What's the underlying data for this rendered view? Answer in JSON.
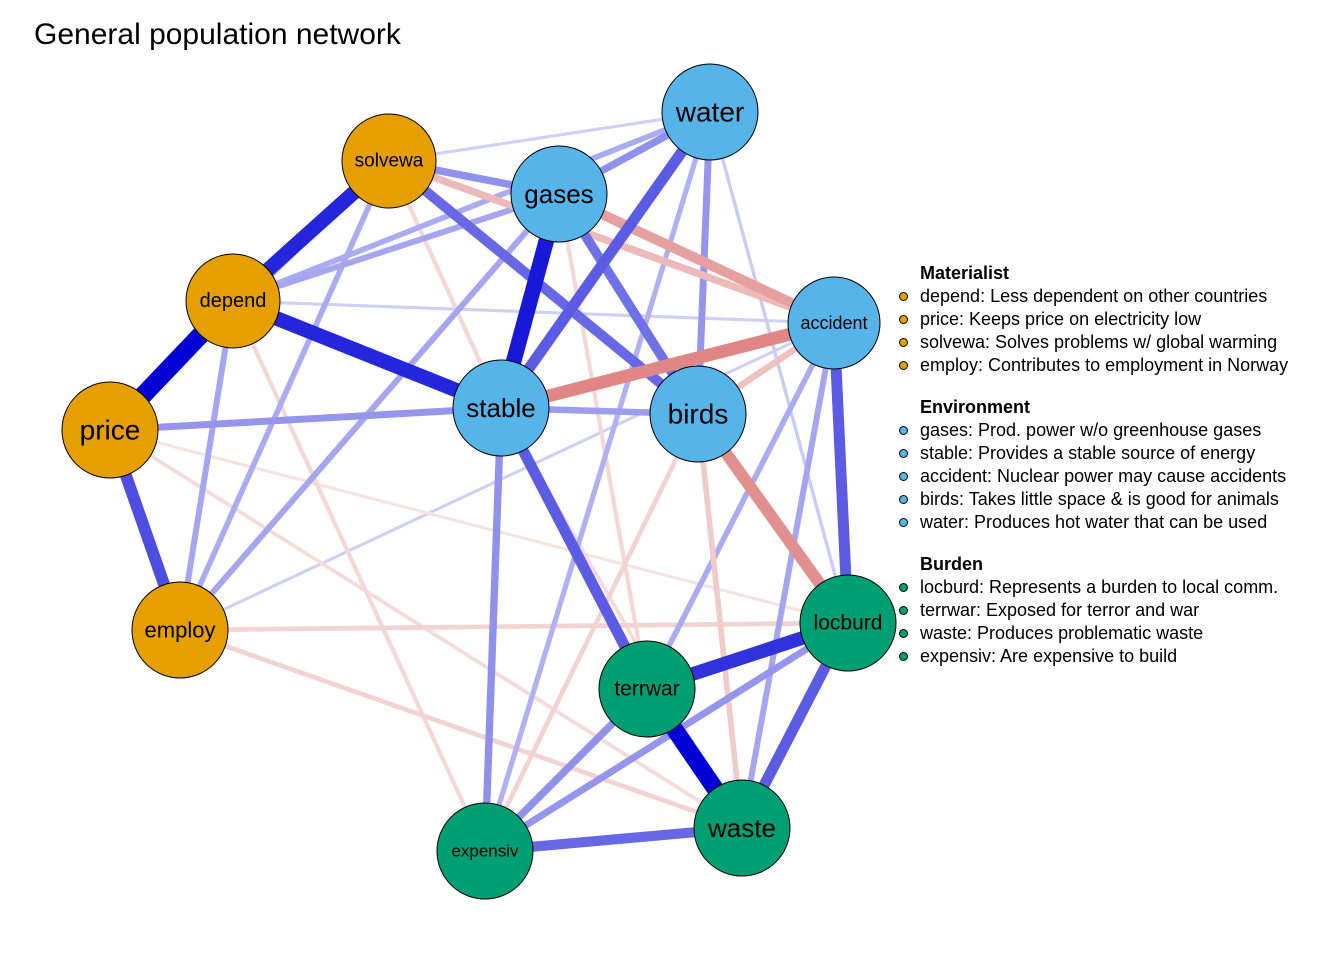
{
  "title": "General population network",
  "colors": {
    "materialist": "#E69F00",
    "environment": "#56B4E9",
    "burden": "#009E73",
    "positive": "#0000D5",
    "negative": "#D55E5E"
  },
  "nodes": [
    {
      "id": "water",
      "label": "water",
      "group": "environment"
    },
    {
      "id": "gases",
      "label": "gases",
      "group": "environment"
    },
    {
      "id": "solvewa",
      "label": "solvewa",
      "group": "materialist"
    },
    {
      "id": "depend",
      "label": "depend",
      "group": "materialist"
    },
    {
      "id": "price",
      "label": "price",
      "group": "materialist"
    },
    {
      "id": "employ",
      "label": "employ",
      "group": "materialist"
    },
    {
      "id": "stable",
      "label": "stable",
      "group": "environment"
    },
    {
      "id": "birds",
      "label": "birds",
      "group": "environment"
    },
    {
      "id": "accident",
      "label": "accident",
      "group": "environment"
    },
    {
      "id": "locburd",
      "label": "locburd",
      "group": "burden"
    },
    {
      "id": "terrwar",
      "label": "terrwar",
      "group": "burden"
    },
    {
      "id": "waste",
      "label": "waste",
      "group": "burden"
    },
    {
      "id": "expensiv",
      "label": "expensiv",
      "group": "burden"
    }
  ],
  "edges": [
    {
      "from": "price",
      "to": "depend",
      "weight": 0.9
    },
    {
      "from": "terrwar",
      "to": "waste",
      "weight": 0.85
    },
    {
      "from": "gases",
      "to": "stable",
      "weight": 0.75
    },
    {
      "from": "solvewa",
      "to": "depend",
      "weight": 0.7
    },
    {
      "from": "depend",
      "to": "stable",
      "weight": 0.7
    },
    {
      "from": "terrwar",
      "to": "locburd",
      "weight": 0.65
    },
    {
      "from": "stable",
      "to": "accident",
      "weight": -0.6
    },
    {
      "from": "price",
      "to": "employ",
      "weight": 0.55
    },
    {
      "from": "locburd",
      "to": "waste",
      "weight": 0.5
    },
    {
      "from": "stable",
      "to": "terrwar",
      "weight": 0.5
    },
    {
      "from": "accident",
      "to": "locburd",
      "weight": 0.5
    },
    {
      "from": "birds",
      "to": "locburd",
      "weight": -0.55
    },
    {
      "from": "water",
      "to": "stable",
      "weight": 0.5
    },
    {
      "from": "solvewa",
      "to": "birds",
      "weight": 0.45
    },
    {
      "from": "gases",
      "to": "accident",
      "weight": -0.45
    },
    {
      "from": "expensiv",
      "to": "waste",
      "weight": 0.45
    },
    {
      "from": "gases",
      "to": "birds",
      "weight": 0.42
    },
    {
      "from": "solvewa",
      "to": "gases",
      "weight": 0.3
    },
    {
      "from": "price",
      "to": "stable",
      "weight": 0.28
    },
    {
      "from": "stable",
      "to": "birds",
      "weight": 0.25
    },
    {
      "from": "stable",
      "to": "expensiv",
      "weight": 0.3
    },
    {
      "from": "gases",
      "to": "depend",
      "weight": 0.22
    },
    {
      "from": "gases",
      "to": "employ",
      "weight": 0.22
    },
    {
      "from": "depend",
      "to": "employ",
      "weight": 0.22
    },
    {
      "from": "solvewa",
      "to": "price",
      "weight": 0.22
    },
    {
      "from": "solvewa",
      "to": "employ",
      "weight": 0.2
    },
    {
      "from": "water",
      "to": "birds",
      "weight": 0.28
    },
    {
      "from": "water",
      "to": "gases",
      "weight": 0.3
    },
    {
      "from": "water",
      "to": "depend",
      "weight": 0.2
    },
    {
      "from": "water",
      "to": "solvewa",
      "weight": 0.06
    },
    {
      "from": "water",
      "to": "locburd",
      "weight": 0.08
    },
    {
      "from": "water",
      "to": "expensiv",
      "weight": 0.18
    },
    {
      "from": "terrwar",
      "to": "expensiv",
      "weight": 0.3
    },
    {
      "from": "locburd",
      "to": "expensiv",
      "weight": 0.28
    },
    {
      "from": "accident",
      "to": "waste",
      "weight": 0.22
    },
    {
      "from": "accident",
      "to": "terrwar",
      "weight": 0.2
    },
    {
      "from": "birds",
      "to": "waste",
      "weight": -0.2
    },
    {
      "from": "birds",
      "to": "expensiv",
      "weight": -0.15
    },
    {
      "from": "birds",
      "to": "accident",
      "weight": -0.25
    },
    {
      "from": "solvewa",
      "to": "accident",
      "weight": -0.3
    },
    {
      "from": "solvewa",
      "to": "stable",
      "weight": -0.12
    },
    {
      "from": "gases",
      "to": "terrwar",
      "weight": -0.12
    },
    {
      "from": "employ",
      "to": "locburd",
      "weight": -0.15
    },
    {
      "from": "employ",
      "to": "waste",
      "weight": -0.15
    },
    {
      "from": "price",
      "to": "waste",
      "weight": -0.1
    },
    {
      "from": "depend",
      "to": "expensiv",
      "weight": -0.12
    },
    {
      "from": "stable",
      "to": "waste",
      "weight": -0.1
    },
    {
      "from": "depend",
      "to": "accident",
      "weight": 0.06
    },
    {
      "from": "employ",
      "to": "accident",
      "weight": 0.06
    },
    {
      "from": "price",
      "to": "locburd",
      "weight": -0.06
    }
  ],
  "legend": [
    {
      "group": "materialist",
      "title": "Materialist",
      "items": [
        "depend: Less dependent on other countries",
        "price: Keeps price on electricity low",
        "solvewa: Solves problems w/ global warming",
        "employ: Contributes to employment in Norway"
      ]
    },
    {
      "group": "environment",
      "title": "Environment",
      "items": [
        "gases: Prod. power w/o greenhouse gases",
        "stable: Provides a stable source of energy",
        "accident: Nuclear power may cause accidents",
        "birds: Takes little space & is good for animals",
        "water: Produces hot water that can be used"
      ]
    },
    {
      "group": "burden",
      "title": "Burden",
      "items": [
        "locburd: Represents a burden to local comm.",
        "terrwar: Exposed for terror and war",
        "waste: Produces problematic waste",
        "expensiv: Are expensive to build"
      ]
    }
  ]
}
